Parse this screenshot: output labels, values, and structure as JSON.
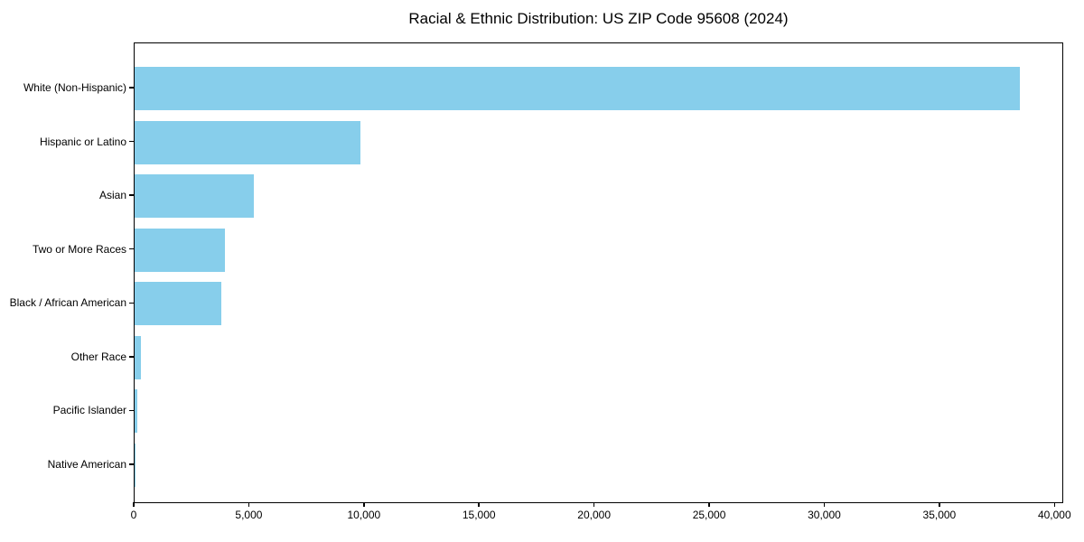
{
  "figure": {
    "background": "#ffffff",
    "text_color": "#000000",
    "spine_color": "#000000"
  },
  "chart_data": {
    "type": "bar",
    "orientation": "horizontal",
    "title": "Racial & Ethnic Distribution: US ZIP Code 95608 (2024)",
    "categories": [
      "White (Non-Hispanic)",
      "Hispanic or Latino",
      "Asian",
      "Two or More Races",
      "Black / African American",
      "Other Race",
      "Pacific Islander",
      "Native American"
    ],
    "values": [
      38450,
      9800,
      5180,
      3930,
      3780,
      260,
      120,
      40
    ],
    "bar_color": "#87CEEB",
    "xlabel": "",
    "ylabel": "",
    "xlim": [
      0,
      40380
    ],
    "xticks": [
      0,
      5000,
      10000,
      15000,
      20000,
      25000,
      30000,
      35000,
      40000
    ],
    "grid": false,
    "legend": null,
    "value_labels_shown": false
  }
}
